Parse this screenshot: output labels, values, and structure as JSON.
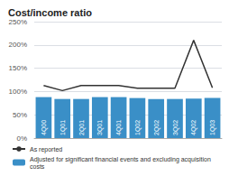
{
  "chart_data": {
    "type": "bar",
    "title": "Cost/income ratio",
    "categories": [
      "4Q00",
      "1Q01",
      "2Q01",
      "3Q01",
      "4Q01",
      "1Q02",
      "2Q02",
      "3Q02",
      "4Q02",
      "1Q03"
    ],
    "series": [
      {
        "name": "As reported",
        "type": "line",
        "color": "#333333",
        "values": [
          113,
          102,
          113,
          113,
          113,
          107,
          107,
          107,
          210,
          108
        ]
      },
      {
        "name": "Adjusted for significant financial events and excluding acquisition costs",
        "type": "bar",
        "color": "#3a8fc7",
        "values": [
          88,
          84,
          84,
          88,
          88,
          86,
          84,
          84,
          85,
          86
        ]
      }
    ],
    "ylim": [
      0,
      250
    ],
    "yticks": [
      {
        "value": 0,
        "label": "0%"
      },
      {
        "value": 50,
        "label": "50%"
      },
      {
        "value": 100,
        "label": "100%"
      },
      {
        "value": 150,
        "label": "150%"
      },
      {
        "value": 200,
        "label": "200%"
      },
      {
        "value": 250,
        "label": "250%"
      }
    ],
    "grid": true,
    "legend": "bottom",
    "tick_labels": "y"
  }
}
